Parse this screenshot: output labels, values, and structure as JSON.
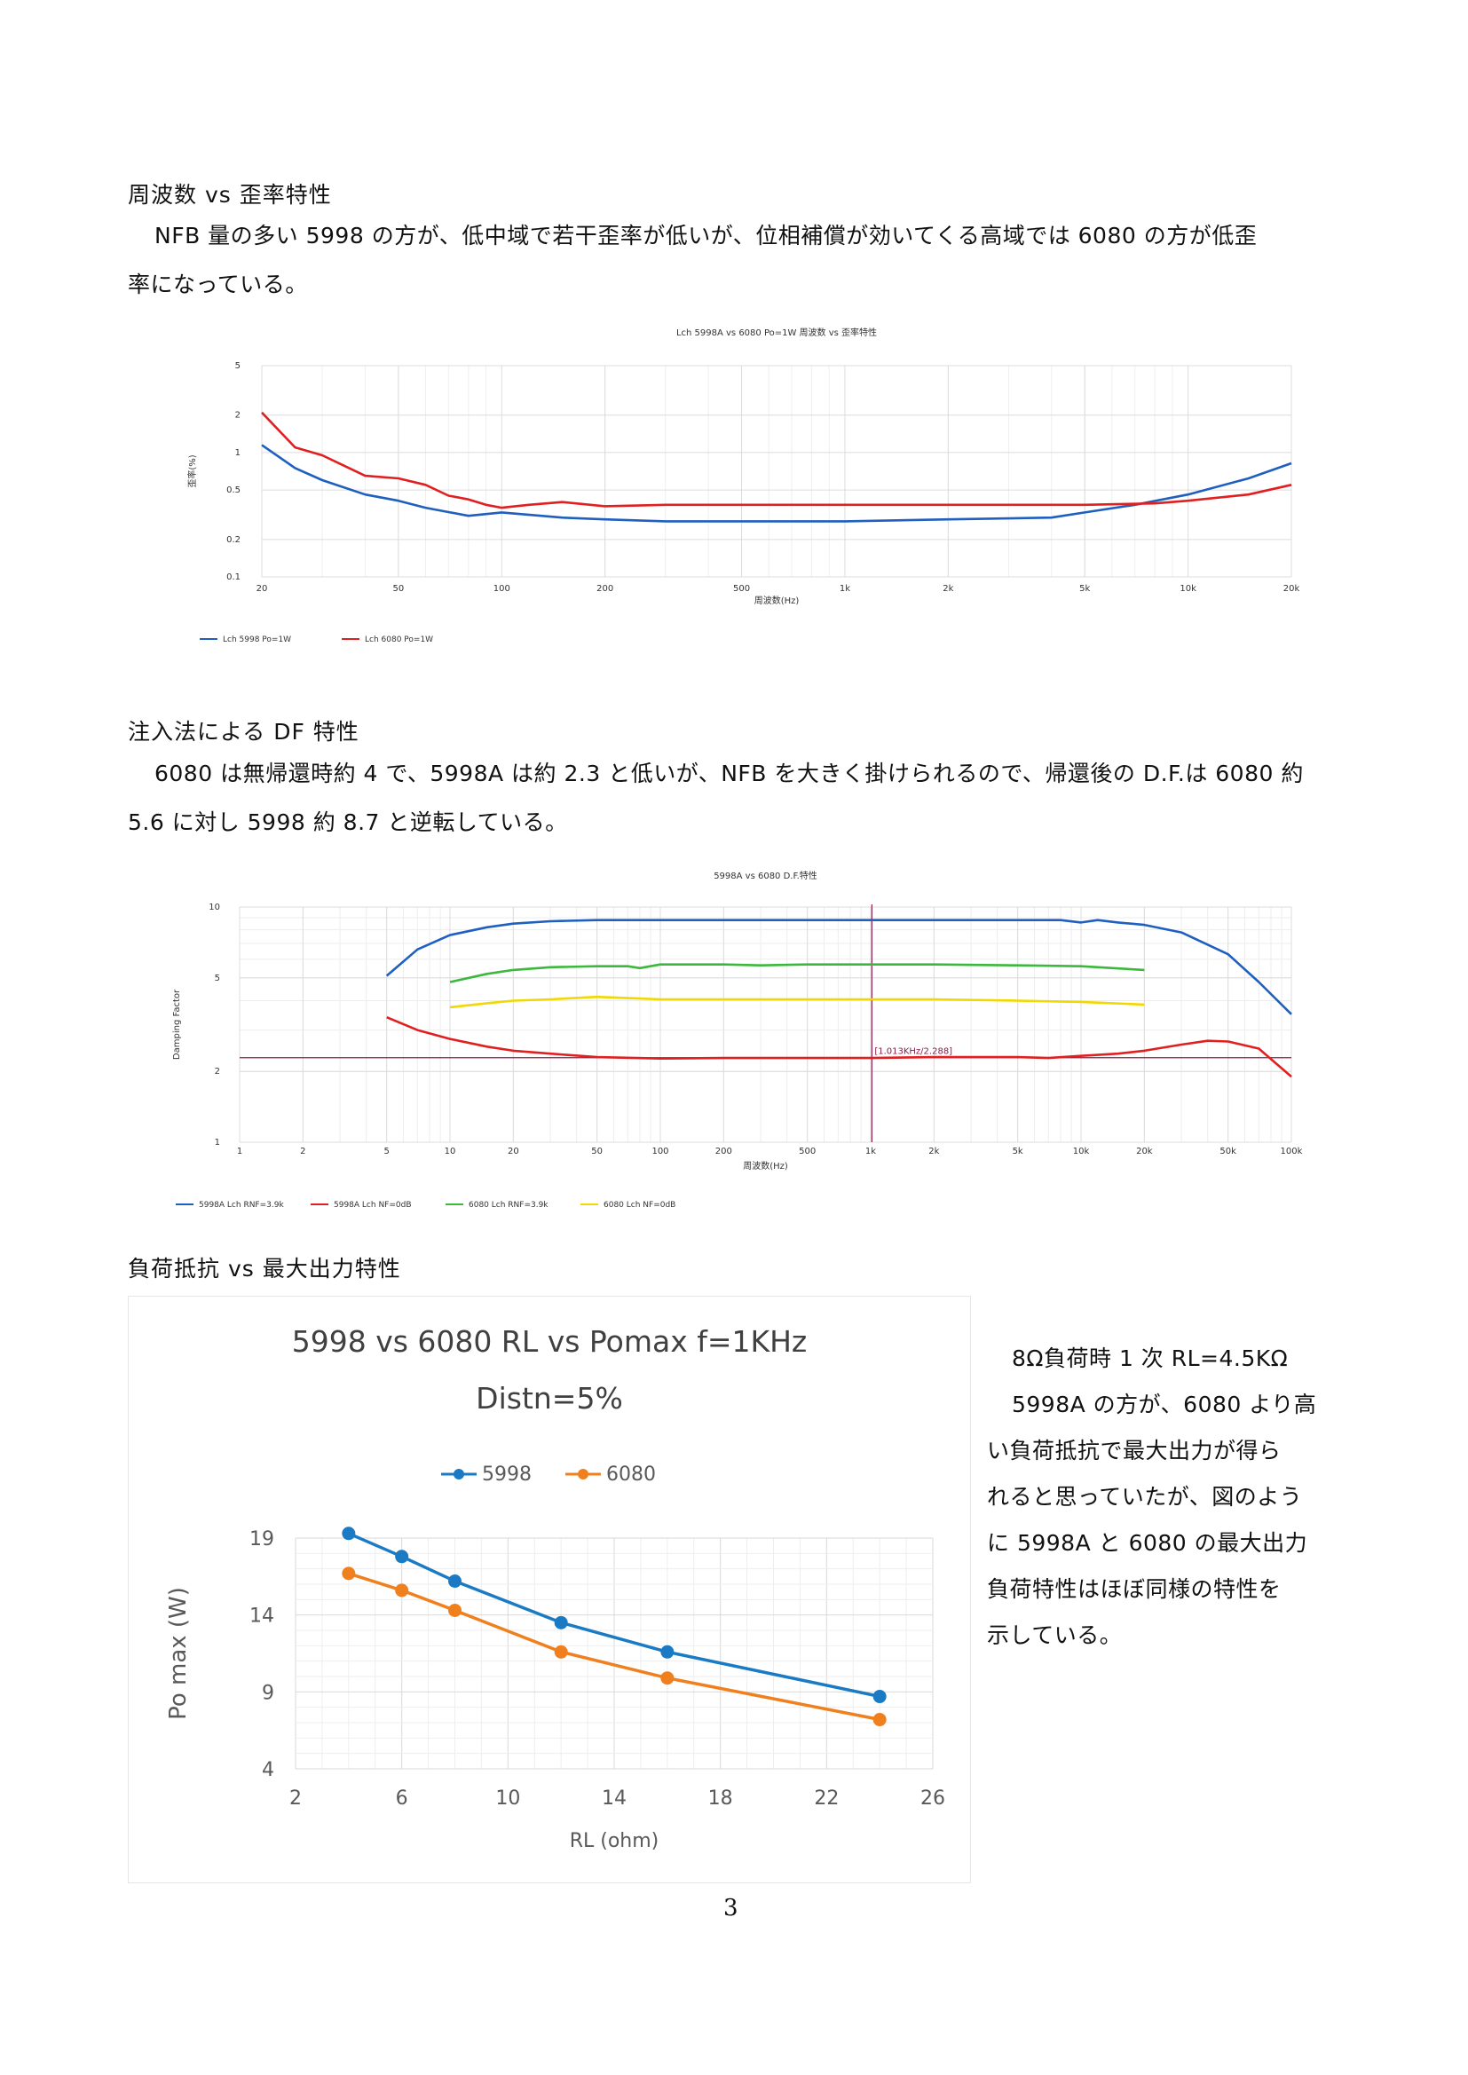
{
  "sections": {
    "s1": {
      "heading": "周波数 vs 歪率特性",
      "para_line1": "NFB 量の多い 5998 の方が、低中域で若干歪率が低いが、位相補償が効いてくる高域では 6080 の方が低歪",
      "para_line2": "率になっている。"
    },
    "s2": {
      "heading": "注入法による DF 特性",
      "para_line1": "6080 は無帰還時約 4 で、5998A は約 2.3 と低いが、NFB を大きく掛けられるので、帰還後の D.F.は 6080 約",
      "para_line2": "5.6 に対し 5998 約 8.7 と逆転している。"
    },
    "s3": {
      "heading": "負荷抵抗 vs 最大出力特性",
      "side_lines": [
        "8Ω負荷時 1 次 RL=4.5KΩ",
        "5998A の方が、6080 より高",
        "い負荷抵抗で最大出力が得ら",
        "れると思っていたが、図のよう",
        "に 5998A と 6080 の最大出力",
        "負荷特性はほぼ同様の特性を",
        "示している。"
      ]
    }
  },
  "page_number": "3",
  "colors": {
    "blue": "#1f5fbf",
    "red": "#e02020",
    "green": "#3cb83c",
    "yellow": "#f0d800",
    "purple": "#8b1a4a",
    "excel_blue": "#1a7bc4",
    "excel_orange": "#f07f1e"
  },
  "chart_data": [
    {
      "type": "line",
      "title": "Lch 5998A vs 6080  Po=1W 周波数 vs 歪率特性",
      "xlabel": "周波数(Hz)",
      "ylabel": "歪率(%)",
      "x_scale": "log",
      "y_scale": "log",
      "xlim": [
        20,
        20000
      ],
      "ylim": [
        0.1,
        5
      ],
      "x_ticks": [
        "20",
        "50",
        "100",
        "200",
        "500",
        "1k",
        "2k",
        "5k",
        "10k",
        "20k"
      ],
      "x_tick_values": [
        20,
        50,
        100,
        200,
        500,
        1000,
        2000,
        5000,
        10000,
        20000
      ],
      "y_ticks": [
        "0.1",
        "0.2",
        "0.5",
        "1",
        "2",
        "5"
      ],
      "y_tick_values": [
        0.1,
        0.2,
        0.5,
        1,
        2,
        5
      ],
      "legend_position": "bottom-left",
      "series": [
        {
          "name": "Lch 5998 Po=1W",
          "color": "#1f5fbf",
          "x": [
            20,
            25,
            30,
            40,
            50,
            60,
            80,
            100,
            150,
            200,
            300,
            500,
            1000,
            2000,
            4000,
            5000,
            7000,
            10000,
            15000,
            20000
          ],
          "y": [
            1.15,
            0.75,
            0.6,
            0.46,
            0.41,
            0.36,
            0.31,
            0.33,
            0.3,
            0.29,
            0.28,
            0.28,
            0.28,
            0.29,
            0.3,
            0.33,
            0.38,
            0.46,
            0.62,
            0.82
          ]
        },
        {
          "name": "Lch 6080 Po=1W",
          "color": "#e02020",
          "x": [
            20,
            25,
            30,
            40,
            50,
            60,
            70,
            80,
            90,
            100,
            120,
            150,
            200,
            300,
            500,
            1000,
            2000,
            5000,
            8000,
            10000,
            15000,
            20000
          ],
          "y": [
            2.1,
            1.1,
            0.95,
            0.65,
            0.62,
            0.55,
            0.45,
            0.42,
            0.38,
            0.36,
            0.38,
            0.4,
            0.37,
            0.38,
            0.38,
            0.38,
            0.38,
            0.38,
            0.39,
            0.41,
            0.46,
            0.55
          ]
        }
      ]
    },
    {
      "type": "line",
      "title": "5998A vs 6080  D.F.特性",
      "xlabel": "周波数(Hz)",
      "ylabel": "Damping Factor",
      "x_scale": "log",
      "y_scale": "log",
      "xlim": [
        1,
        100000
      ],
      "ylim": [
        1,
        10
      ],
      "x_ticks": [
        "1",
        "2",
        "5",
        "10",
        "20",
        "50",
        "100",
        "200",
        "500",
        "1k",
        "2k",
        "5k",
        "10k",
        "20k",
        "50k",
        "100k"
      ],
      "x_tick_values": [
        1,
        2,
        5,
        10,
        20,
        50,
        100,
        200,
        500,
        1000,
        2000,
        5000,
        10000,
        20000,
        50000,
        100000
      ],
      "y_ticks": [
        "1",
        "2",
        "5",
        "10"
      ],
      "y_tick_values": [
        1,
        2,
        5,
        10
      ],
      "cursor": {
        "x": 1013,
        "label": "[1.013KHz/2.288]"
      },
      "reference_level": 2.288,
      "legend_position": "bottom-left",
      "series": [
        {
          "name": "5998A  Lch  RNF=3.9k",
          "color": "#1f5fbf",
          "x": [
            5,
            7,
            10,
            15,
            20,
            30,
            50,
            100,
            200,
            500,
            1000,
            2000,
            5000,
            8000,
            10000,
            12000,
            15000,
            20000,
            30000,
            50000,
            70000,
            100000
          ],
          "y": [
            5.1,
            6.6,
            7.6,
            8.2,
            8.5,
            8.7,
            8.8,
            8.8,
            8.8,
            8.8,
            8.8,
            8.8,
            8.8,
            8.8,
            8.6,
            8.8,
            8.6,
            8.4,
            7.8,
            6.3,
            4.8,
            3.5
          ]
        },
        {
          "name": "5998A  Lch  NF=0dB",
          "color": "#e02020",
          "x": [
            5,
            7,
            10,
            15,
            20,
            30,
            50,
            100,
            200,
            500,
            1000,
            2000,
            5000,
            7000,
            10000,
            15000,
            20000,
            30000,
            40000,
            50000,
            70000,
            100000
          ],
          "y": [
            3.4,
            3.0,
            2.75,
            2.55,
            2.45,
            2.38,
            2.3,
            2.27,
            2.28,
            2.28,
            2.28,
            2.3,
            2.3,
            2.28,
            2.33,
            2.38,
            2.45,
            2.6,
            2.7,
            2.68,
            2.5,
            1.9
          ]
        },
        {
          "name": "6080  Lch  RNF=3.9k",
          "color": "#3cb83c",
          "x": [
            10,
            15,
            20,
            30,
            50,
            70,
            80,
            100,
            200,
            300,
            500,
            1000,
            2000,
            5000,
            10000,
            20000
          ],
          "y": [
            4.8,
            5.2,
            5.4,
            5.55,
            5.6,
            5.6,
            5.5,
            5.7,
            5.7,
            5.65,
            5.7,
            5.7,
            5.7,
            5.65,
            5.6,
            5.4
          ]
        },
        {
          "name": "6080  Lch  NF=0dB",
          "color": "#f0d800",
          "x": [
            10,
            15,
            20,
            30,
            50,
            70,
            100,
            200,
            500,
            1000,
            2000,
            5000,
            10000,
            20000
          ],
          "y": [
            3.75,
            3.9,
            4.0,
            4.05,
            4.15,
            4.1,
            4.05,
            4.05,
            4.05,
            4.05,
            4.05,
            4.0,
            3.95,
            3.85
          ]
        }
      ]
    },
    {
      "type": "line",
      "title_line1": "5998 vs 6080 RL vs  Pomax    f=1KHz",
      "title_line2": "Distn=5%",
      "xlabel": "RL (ohm)",
      "ylabel": "Po max (W)",
      "xlim": [
        2,
        26
      ],
      "ylim": [
        4,
        19
      ],
      "x_ticks": [
        "2",
        "6",
        "10",
        "14",
        "18",
        "22",
        "26"
      ],
      "x_tick_values": [
        2,
        6,
        10,
        14,
        18,
        22,
        26
      ],
      "y_ticks": [
        "4",
        "9",
        "14",
        "19"
      ],
      "y_tick_values": [
        4,
        9,
        14,
        19
      ],
      "legend_position": "top",
      "series": [
        {
          "name": "5998",
          "color": "#1a7bc4",
          "x": [
            4,
            6,
            8,
            12,
            16,
            24
          ],
          "y": [
            19.3,
            17.8,
            16.2,
            13.5,
            11.6,
            8.7
          ]
        },
        {
          "name": "6080",
          "color": "#f07f1e",
          "x": [
            4,
            6,
            8,
            12,
            16,
            24
          ],
          "y": [
            16.7,
            15.6,
            14.3,
            11.6,
            9.9,
            7.2
          ]
        }
      ]
    }
  ]
}
